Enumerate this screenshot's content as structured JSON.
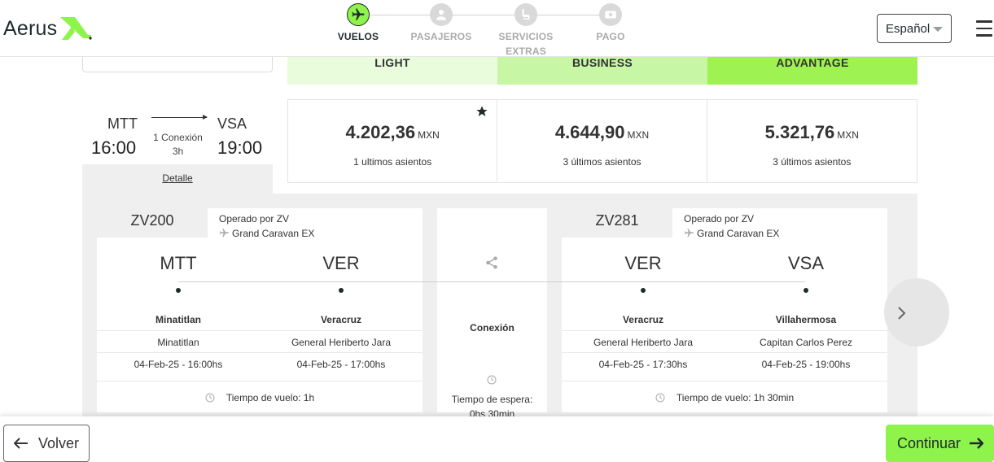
{
  "header": {
    "logo_text": "Aerus",
    "steps": [
      {
        "label": "VUELOS",
        "active": true,
        "icon": "airplane-icon"
      },
      {
        "label": "PASAJEROS",
        "active": false,
        "icon": "user-icon"
      },
      {
        "label_line1": "SERVICIOS",
        "label_line2": "EXTRAS",
        "active": false,
        "icon": "seat-icon"
      },
      {
        "label": "PAGO",
        "active": false,
        "icon": "money-icon"
      }
    ],
    "language": "Español"
  },
  "tariffs": [
    "LIGHT",
    "BUSINESS",
    "ADVANTAGE"
  ],
  "summary": {
    "origin": "MTT",
    "destination": "VSA",
    "depart_time": "16:00",
    "arrive_time": "19:00",
    "connections": "1 Conexión",
    "duration": "3h",
    "detail_link": "Detalle"
  },
  "prices": [
    {
      "amount": "4.202,36",
      "currency": "MXN",
      "seats": "1 ultimos asientos",
      "starred": true
    },
    {
      "amount": "4.644,90",
      "currency": "MXN",
      "seats": "3 últimos asientos"
    },
    {
      "amount": "5.321,76",
      "currency": "MXN",
      "seats": "3 últimos asientos"
    }
  ],
  "segments": [
    {
      "flight_no": "ZV200",
      "operated_by": "Operado por ZV",
      "aircraft": "Grand Caravan EX",
      "from": {
        "code": "MTT",
        "city": "Minatitlan",
        "airport": "Minatitlan",
        "datetime": "04-Feb-25 - 16:00hs"
      },
      "to": {
        "code": "VER",
        "city": "Veracruz",
        "airport": "General Heriberto Jara",
        "datetime": "04-Feb-25 - 17:00hs"
      },
      "flight_time": "Tiempo de vuelo: 1h"
    },
    {
      "flight_no": "ZV281",
      "operated_by": "Operado por ZV",
      "aircraft": "Grand Caravan EX",
      "from": {
        "code": "VER",
        "city": "Veracruz",
        "airport": "General Heriberto Jara",
        "datetime": "04-Feb-25 - 17:30hs"
      },
      "to": {
        "code": "VSA",
        "city": "Villahermosa",
        "airport": "Capitan Carlos Perez",
        "datetime": "04-Feb-25 - 19:00hs"
      },
      "flight_time": "Tiempo de vuelo: 1h 30min"
    }
  ],
  "connection": {
    "label": "Conexión",
    "wait_line1": "Tiempo de espera:",
    "wait_line2": "0hs 30min"
  },
  "footer": {
    "back_label": "Volver",
    "continue_label": "Continuar"
  },
  "colors": {
    "accent": "#8ef34a",
    "light_tariff": "#e9fcdc",
    "business_tariff": "#c7f6a4",
    "advantage_tariff": "#9ef251"
  }
}
